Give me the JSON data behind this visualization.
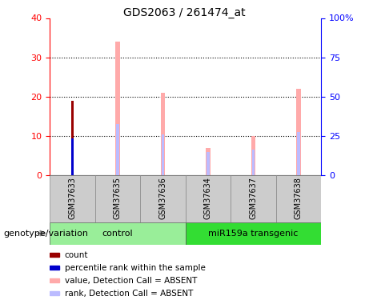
{
  "title": "GDS2063 / 261474_at",
  "samples": [
    "GSM37633",
    "GSM37635",
    "GSM37636",
    "GSM37634",
    "GSM37637",
    "GSM37638"
  ],
  "count_values": [
    19,
    0,
    0,
    0,
    0,
    0
  ],
  "percentile_rank_values": [
    9.5,
    0,
    0,
    0,
    0,
    0
  ],
  "absent_value_heights": [
    0,
    34,
    21,
    7,
    10,
    22
  ],
  "absent_rank_heights": [
    0,
    13,
    10.5,
    6,
    6.5,
    11
  ],
  "ylim_left": [
    0,
    40
  ],
  "ylim_right": [
    0,
    100
  ],
  "yticks_left": [
    0,
    10,
    20,
    30,
    40
  ],
  "yticks_right": [
    0,
    25,
    50,
    75,
    100
  ],
  "ytick_labels_right": [
    "0",
    "25",
    "50",
    "75",
    "100%"
  ],
  "color_count": "#990000",
  "color_percentile": "#0000cc",
  "color_absent_value": "#ffaaaa",
  "color_absent_rank": "#bbbbff",
  "color_control_bg": "#99ee99",
  "color_transgenic_bg": "#33dd33",
  "color_sample_bg": "#cccccc",
  "legend_items": [
    {
      "label": "count",
      "color": "#990000"
    },
    {
      "label": "percentile rank within the sample",
      "color": "#0000cc"
    },
    {
      "label": "value, Detection Call = ABSENT",
      "color": "#ffaaaa"
    },
    {
      "label": "rank, Detection Call = ABSENT",
      "color": "#bbbbff"
    }
  ],
  "genotype_label": "genotype/variation"
}
